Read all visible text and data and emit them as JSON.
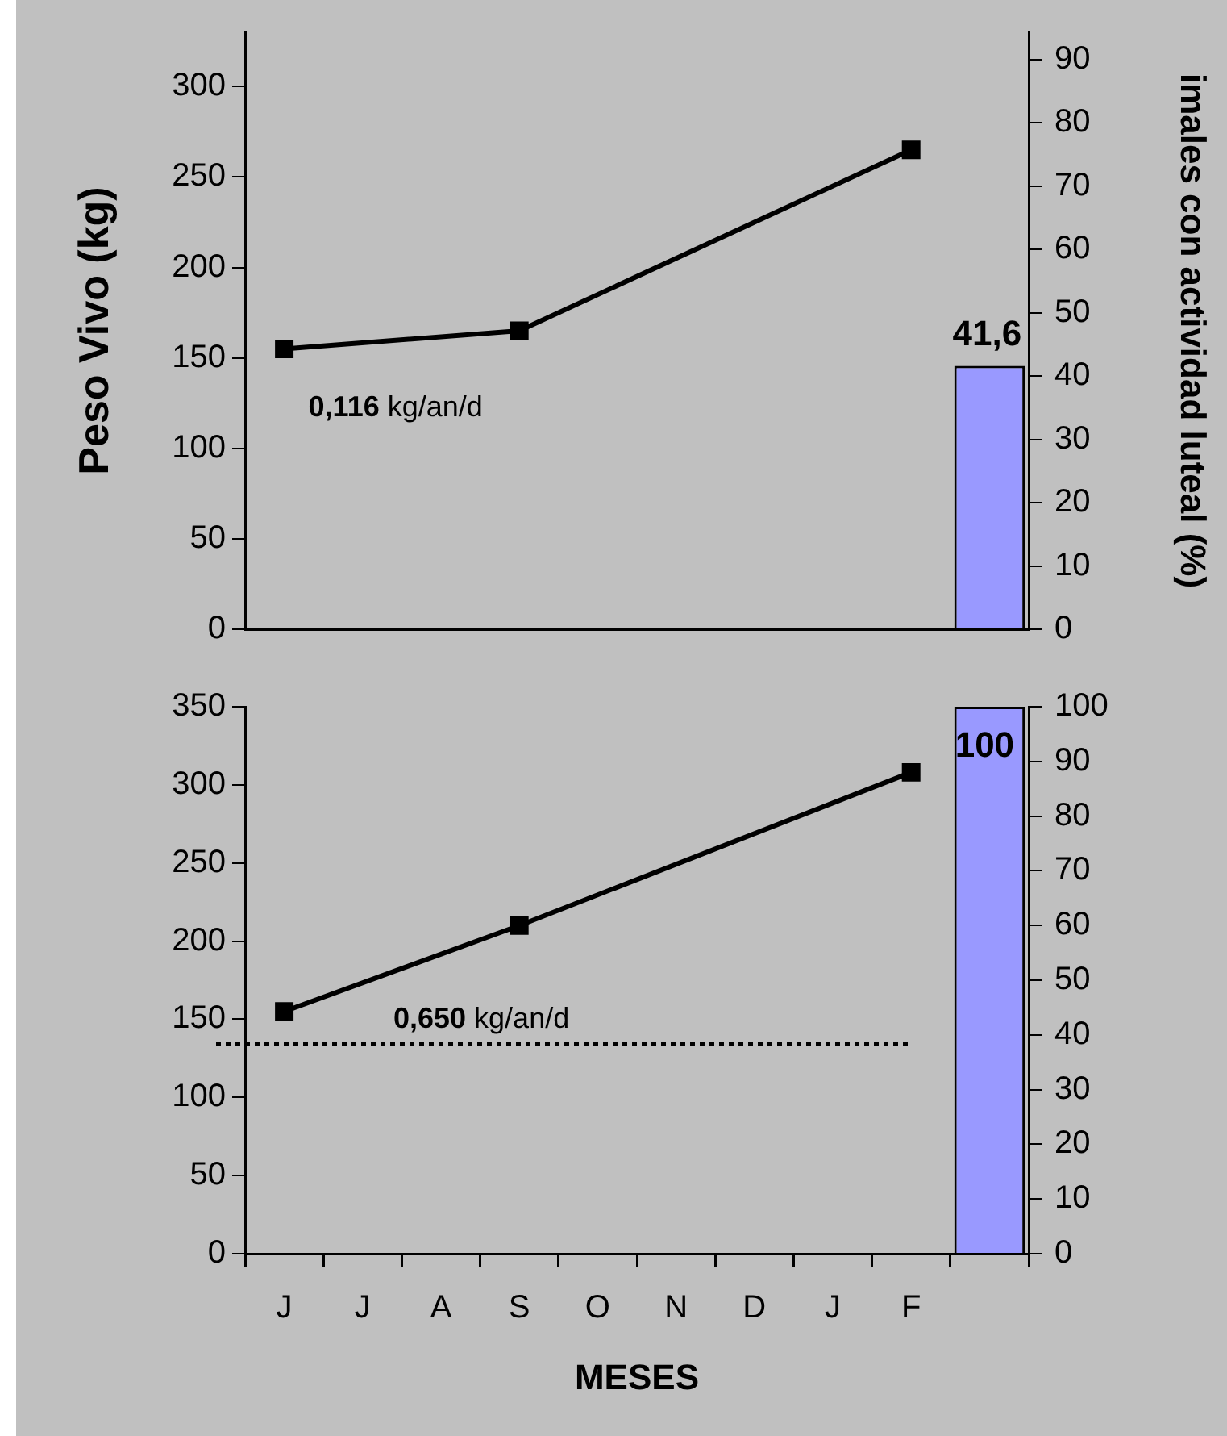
{
  "chart_data": [
    {
      "type": "line",
      "ylabel": "Peso Vivo (kg)",
      "y2label": "imales con actividad luteal (%)",
      "categories": [
        null,
        null,
        null,
        null,
        null,
        null,
        null,
        null,
        null,
        null
      ],
      "series": [
        {
          "color": "#000000",
          "values": [
            155,
            null,
            null,
            165,
            null,
            null,
            null,
            null,
            265,
            null
          ]
        },
        {
          "type": "bar",
          "axis": "y2",
          "color": "#9999ff",
          "values": [
            null,
            null,
            null,
            null,
            null,
            null,
            null,
            null,
            null,
            41.6
          ],
          "value_labels": [
            null,
            null,
            null,
            null,
            null,
            null,
            null,
            null,
            null,
            "41,6"
          ]
        }
      ],
      "ylim": [
        0,
        330
      ],
      "yticks": [
        0,
        50,
        100,
        150,
        200,
        250,
        300
      ],
      "y2lim": [
        0,
        94.3
      ],
      "y2ticks": [
        0,
        10,
        20,
        30,
        40,
        50,
        60,
        70,
        80,
        90
      ],
      "tick_labels": "y",
      "marker": "square",
      "annotations": [
        "0,116 kg/an/d"
      ]
    },
    {
      "type": "line",
      "xlabel": "MESES",
      "categories": [
        "J",
        "J",
        "A",
        "S",
        "O",
        "N",
        "D",
        "J",
        "F",
        null
      ],
      "series": [
        {
          "color": "#000000",
          "values": [
            155,
            null,
            null,
            210,
            null,
            null,
            null,
            null,
            308,
            null
          ]
        },
        {
          "type": "bar",
          "axis": "y2",
          "color": "#9999ff",
          "values": [
            null,
            null,
            null,
            null,
            null,
            null,
            null,
            null,
            null,
            100
          ],
          "value_labels": [
            null,
            null,
            null,
            null,
            null,
            null,
            null,
            null,
            null,
            "100"
          ]
        }
      ],
      "ylim": [
        0,
        350
      ],
      "yticks": [
        0,
        50,
        100,
        150,
        200,
        250,
        300,
        350
      ],
      "y2lim": [
        0,
        100
      ],
      "y2ticks": [
        0,
        10,
        20,
        30,
        40,
        50,
        60,
        70,
        80,
        90,
        100
      ],
      "ref_lines": [
        {
          "axis": "y",
          "value": 134,
          "line_style": "dotted",
          "color": "#000000"
        }
      ],
      "marker": "square",
      "annotations": [
        "0,650 kg/an/d"
      ]
    }
  ]
}
